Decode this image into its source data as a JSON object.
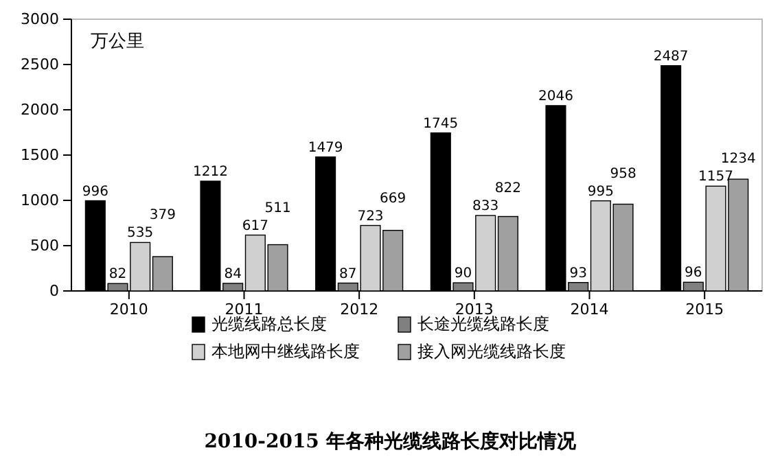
{
  "chart_data": {
    "type": "bar",
    "title": "2010-2015 年各种光缆线路长度对比情况",
    "annotations": [
      "万公里"
    ],
    "categories": [
      "2010",
      "2011",
      "2012",
      "2013",
      "2014",
      "2015"
    ],
    "series": [
      {
        "name": "光缆线路总长度",
        "color": "#000000",
        "values": [
          996,
          1212,
          1479,
          1745,
          2046,
          2487
        ]
      },
      {
        "name": "长途光缆线路长度",
        "color": "#808080",
        "values": [
          82,
          84,
          87,
          90,
          93,
          96
        ]
      },
      {
        "name": "本地网中继线路长度",
        "color": "#d0d0d0",
        "values": [
          535,
          617,
          723,
          833,
          995,
          1157
        ]
      },
      {
        "name": "接入网光缆线路长度",
        "color": "#a0a0a0",
        "values": [
          379,
          511,
          669,
          822,
          958,
          1234
        ]
      }
    ],
    "ylim": [
      0,
      3000
    ],
    "yticks": [
      0,
      500,
      1000,
      1500,
      2000,
      2500,
      3000
    ],
    "data_labels": true,
    "legend": "bottom",
    "grid": false
  }
}
